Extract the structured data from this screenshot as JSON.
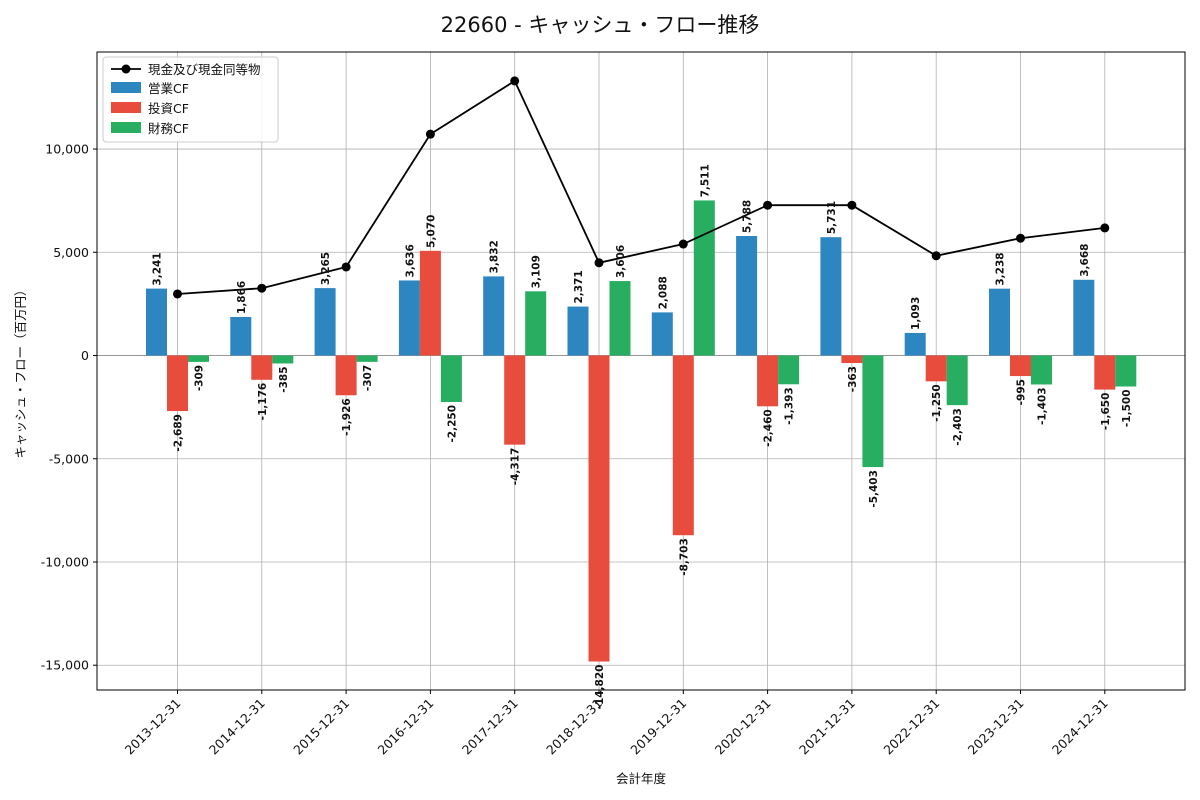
{
  "chart_data": {
    "type": "bar",
    "title": "22660 - キャッシュ・フロー推移",
    "xlabel": "会計年度",
    "ylabel": "キャッシュ・フロー（百万円）",
    "categories": [
      "2013-12-31",
      "2014-12-31",
      "2015-12-31",
      "2016-12-31",
      "2017-12-31",
      "2018-12-31",
      "2019-12-31",
      "2020-12-31",
      "2021-12-31",
      "2022-12-31",
      "2023-12-31",
      "2024-12-31"
    ],
    "ylim": [
      -16200,
      14700
    ],
    "yticks": [
      -15000,
      -10000,
      -5000,
      0,
      5000,
      10000
    ],
    "ytick_labels": [
      "-15,000",
      "-10,000",
      "-5,000",
      "0",
      "5,000",
      "10,000"
    ],
    "grid": true,
    "legend_position": "top-left",
    "bar_series": [
      {
        "name": "営業CF",
        "color": "#2e86c1",
        "values": [
          3241,
          1866,
          3265,
          3636,
          3832,
          2371,
          2088,
          5788,
          5731,
          1093,
          3238,
          3668
        ],
        "labels": [
          "3,241",
          "1,866",
          "3,265",
          "3,636",
          "3,832",
          "2,371",
          "2,088",
          "5,788",
          "5,731",
          "1,093",
          "3,238",
          "3,668"
        ]
      },
      {
        "name": "投資CF",
        "color": "#e74c3c",
        "values": [
          -2689,
          -1176,
          -1926,
          5070,
          -4317,
          -14820,
          -8703,
          -2460,
          -363,
          -1250,
          -995,
          -1650
        ],
        "labels": [
          "-2,689",
          "-1,176",
          "-1,926",
          "5,070",
          "-4,317",
          "-14,820",
          "-8,703",
          "-2,460",
          "-363",
          "-1,250",
          "-995",
          "-1,650"
        ]
      },
      {
        "name": "財務CF",
        "color": "#27ae60",
        "values": [
          -309,
          -385,
          -307,
          -2250,
          3109,
          3606,
          7511,
          -1393,
          -5403,
          -2403,
          -1403,
          -1500
        ],
        "labels": [
          "-309",
          "-385",
          "-307",
          "-2,250",
          "3,109",
          "3,606",
          "7,511",
          "-1,393",
          "-5,403",
          "-2,403",
          "-1,403",
          "-1,500"
        ]
      }
    ],
    "line_series": {
      "name": "現金及び現金同等物",
      "color": "#000000",
      "values": [
        2980,
        3260,
        4290,
        10720,
        13300,
        4490,
        5400,
        7280,
        7280,
        4830,
        5680,
        6180
      ]
    }
  }
}
